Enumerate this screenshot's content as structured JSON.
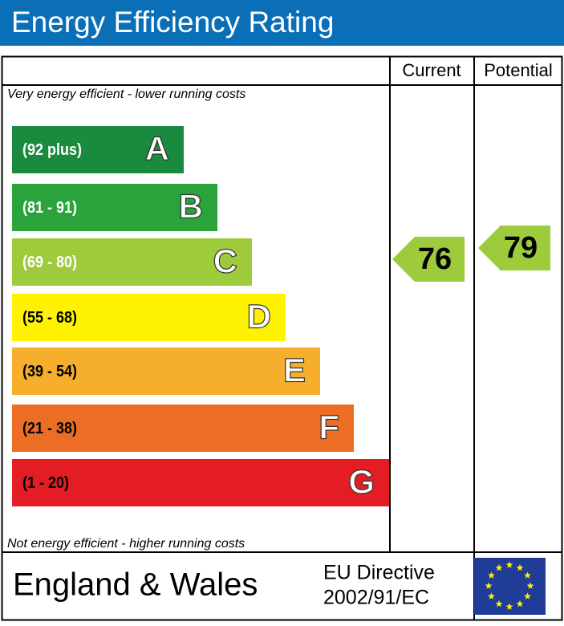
{
  "header": {
    "title": "Energy Efficiency Rating"
  },
  "columns": {
    "current": "Current",
    "potential": "Potential"
  },
  "top_note": "Very energy efficient - lower running costs",
  "bottom_note": "Not energy efficient - higher running costs",
  "bands": [
    {
      "range": "(92 plus)",
      "letter": "A",
      "color": "#1a8a3e"
    },
    {
      "range": "(81 - 91)",
      "letter": "B",
      "color": "#2aa33a"
    },
    {
      "range": "(69 - 80)",
      "letter": "C",
      "color": "#9dcb3c"
    },
    {
      "range": "(55 - 68)",
      "letter": "D",
      "color": "#fff200"
    },
    {
      "range": "(39 - 54)",
      "letter": "E",
      "color": "#f6ae2d"
    },
    {
      "range": "(21 - 38)",
      "letter": "F",
      "color": "#eb6e24"
    },
    {
      "range": "(1 - 20)",
      "letter": "G",
      "color": "#e31d23"
    }
  ],
  "ratings": {
    "current": 76,
    "potential": 79,
    "color": "#9dcb3c"
  },
  "footer": {
    "region": "England & Wales",
    "directive_line1": "EU Directive",
    "directive_line2": "2002/91/EC"
  }
}
